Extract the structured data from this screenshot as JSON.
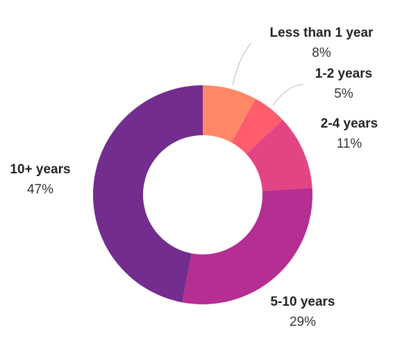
{
  "chart_data": {
    "type": "pie",
    "variant": "donut",
    "title": "",
    "categories": [
      "Less than 1 year",
      "1-2 years",
      "2-4 years",
      "5-10 years",
      "10+ years"
    ],
    "values": [
      8,
      5,
      11,
      29,
      47
    ],
    "value_labels": [
      "8%",
      "5%",
      "11%",
      "29%",
      "47%"
    ],
    "colors": [
      "#FF8866",
      "#FF5C6E",
      "#E34484",
      "#B52E91",
      "#722D8E"
    ],
    "legend": "none",
    "start_angle": "top",
    "direction": "clockwise"
  }
}
